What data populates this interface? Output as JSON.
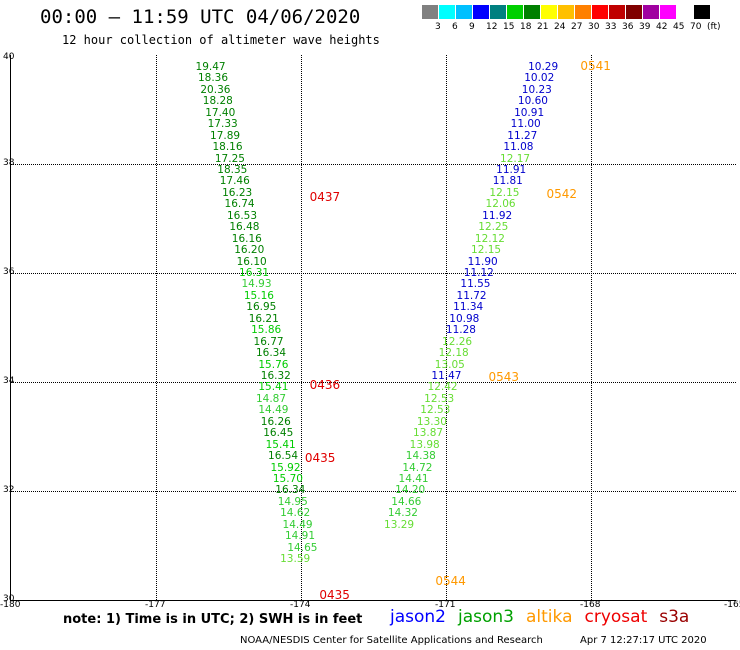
{
  "title": "00:00 – 11:59 UTC 04/06/2020",
  "subtitle": "12 hour collection of altimeter wave heights",
  "colorbar": {
    "colors": [
      "#808080",
      "#00ffff",
      "#00c0ff",
      "#0000ff",
      "#008080",
      "#00d000",
      "#008000",
      "#ffff00",
      "#ffc000",
      "#ff8000",
      "#ff0000",
      "#c00000",
      "#800000",
      "#a000a0",
      "#ff00ff",
      "#ffffff",
      "#000000"
    ],
    "labels": [
      "3",
      "6",
      "9",
      "12",
      "15",
      "18",
      "21",
      "24",
      "27",
      "30",
      "33",
      "36",
      "39",
      "42",
      "45",
      "70",
      "(ft)"
    ]
  },
  "axes": {
    "y_ticks": [
      "40",
      "38",
      "36",
      "34",
      "32",
      "30"
    ],
    "x_ticks": [
      "-180",
      "-177",
      "-174",
      "-171",
      "-168",
      "-165"
    ]
  },
  "map_data": {
    "lat_range": [
      30,
      40
    ],
    "lon_range": [
      -180,
      -165
    ],
    "time_labels": [
      {
        "text": "0437",
        "lon": -173.8,
        "lat": 37.4,
        "color": "#e00000"
      },
      {
        "text": "0436",
        "lon": -173.8,
        "lat": 33.95,
        "color": "#e00000"
      },
      {
        "text": "0435",
        "lon": -173.9,
        "lat": 32.6,
        "color": "#e00000"
      },
      {
        "text": "0435",
        "lon": -173.6,
        "lat": 30.1,
        "color": "#e00000"
      },
      {
        "text": "0541",
        "lon": -168.2,
        "lat": 39.8,
        "color": "#ff9900"
      },
      {
        "text": "0542",
        "lon": -168.9,
        "lat": 37.45,
        "color": "#ff9900"
      },
      {
        "text": "0543",
        "lon": -170.1,
        "lat": 34.1,
        "color": "#ff9900"
      },
      {
        "text": "0544",
        "lon": -171.2,
        "lat": 30.35,
        "color": "#ff9900"
      }
    ],
    "tracks": [
      {
        "satellite": "jason3",
        "points": [
          {
            "v": "19.47",
            "lon": -175.85,
            "lat": 39.78,
            "c": "#008000"
          },
          {
            "v": "18.36",
            "lon": -175.8,
            "lat": 39.57,
            "c": "#008000"
          },
          {
            "v": "20.36",
            "lon": -175.75,
            "lat": 39.36,
            "c": "#008000"
          },
          {
            "v": "18.28",
            "lon": -175.7,
            "lat": 39.15,
            "c": "#008000"
          },
          {
            "v": "17.40",
            "lon": -175.65,
            "lat": 38.94,
            "c": "#008000"
          },
          {
            "v": "17.33",
            "lon": -175.6,
            "lat": 38.73,
            "c": "#008000"
          },
          {
            "v": "17.89",
            "lon": -175.55,
            "lat": 38.52,
            "c": "#008000"
          },
          {
            "v": "18.16",
            "lon": -175.5,
            "lat": 38.31,
            "c": "#008000"
          },
          {
            "v": "17.25",
            "lon": -175.45,
            "lat": 38.1,
            "c": "#008000"
          },
          {
            "v": "18.35",
            "lon": -175.4,
            "lat": 37.89,
            "c": "#008000"
          },
          {
            "v": "17.46",
            "lon": -175.35,
            "lat": 37.68,
            "c": "#008000"
          },
          {
            "v": "16.23",
            "lon": -175.3,
            "lat": 37.47,
            "c": "#008000"
          },
          {
            "v": "16.74",
            "lon": -175.25,
            "lat": 37.26,
            "c": "#008000"
          },
          {
            "v": "16.53",
            "lon": -175.2,
            "lat": 37.05,
            "c": "#008000"
          },
          {
            "v": "16.48",
            "lon": -175.15,
            "lat": 36.84,
            "c": "#008000"
          },
          {
            "v": "16.16",
            "lon": -175.1,
            "lat": 36.63,
            "c": "#008000"
          },
          {
            "v": "16.20",
            "lon": -175.05,
            "lat": 36.42,
            "c": "#008000"
          },
          {
            "v": "16.10",
            "lon": -175.0,
            "lat": 36.21,
            "c": "#008000"
          },
          {
            "v": "16.31",
            "lon": -174.95,
            "lat": 36.0,
            "c": "#00cc00"
          },
          {
            "v": "14.93",
            "lon": -174.9,
            "lat": 35.79,
            "c": "#33cc33"
          },
          {
            "v": "15.16",
            "lon": -174.85,
            "lat": 35.58,
            "c": "#00cc00"
          },
          {
            "v": "16.95",
            "lon": -174.8,
            "lat": 35.37,
            "c": "#008000"
          },
          {
            "v": "16.21",
            "lon": -174.75,
            "lat": 35.16,
            "c": "#008000"
          },
          {
            "v": "15.86",
            "lon": -174.7,
            "lat": 34.95,
            "c": "#00cc00"
          },
          {
            "v": "16.77",
            "lon": -174.65,
            "lat": 34.74,
            "c": "#008000"
          },
          {
            "v": "16.34",
            "lon": -174.6,
            "lat": 34.53,
            "c": "#008000"
          },
          {
            "v": "15.76",
            "lon": -174.55,
            "lat": 34.32,
            "c": "#00cc00"
          },
          {
            "v": "16.32",
            "lon": -174.5,
            "lat": 34.11,
            "c": "#008000"
          },
          {
            "v": "15.41",
            "lon": -174.55,
            "lat": 33.9,
            "c": "#00cc00"
          },
          {
            "v": "14.87",
            "lon": -174.6,
            "lat": 33.69,
            "c": "#33cc33"
          },
          {
            "v": "14.49",
            "lon": -174.55,
            "lat": 33.48,
            "c": "#33cc33"
          },
          {
            "v": "16.26",
            "lon": -174.5,
            "lat": 33.27,
            "c": "#008000"
          },
          {
            "v": "16.45",
            "lon": -174.45,
            "lat": 33.06,
            "c": "#008000"
          },
          {
            "v": "15.41",
            "lon": -174.4,
            "lat": 32.85,
            "c": "#00cc00"
          },
          {
            "v": "16.54",
            "lon": -174.35,
            "lat": 32.64,
            "c": "#008000"
          },
          {
            "v": "15.92",
            "lon": -174.3,
            "lat": 32.43,
            "c": "#00cc00"
          },
          {
            "v": "15.70",
            "lon": -174.25,
            "lat": 32.22,
            "c": "#00cc00"
          },
          {
            "v": "16.34",
            "lon": -174.2,
            "lat": 32.01,
            "c": "#008000"
          },
          {
            "v": "14.95",
            "lon": -174.15,
            "lat": 31.8,
            "c": "#33cc33"
          },
          {
            "v": "14.62",
            "lon": -174.1,
            "lat": 31.59,
            "c": "#33cc33"
          },
          {
            "v": "14.49",
            "lon": -174.05,
            "lat": 31.38,
            "c": "#33cc33"
          },
          {
            "v": "14.91",
            "lon": -174.0,
            "lat": 31.17,
            "c": "#33cc33"
          },
          {
            "v": "14.65",
            "lon": -173.95,
            "lat": 30.96,
            "c": "#33cc33"
          },
          {
            "v": "13.59",
            "lon": -174.1,
            "lat": 30.75,
            "c": "#66dd33"
          }
        ]
      },
      {
        "satellite": "jason2",
        "points": [
          {
            "v": "10.29",
            "lon": -168.97,
            "lat": 39.78,
            "c": "#0000cc"
          },
          {
            "v": "10.02",
            "lon": -169.05,
            "lat": 39.57,
            "c": "#0000cc"
          },
          {
            "v": "10.23",
            "lon": -169.1,
            "lat": 39.36,
            "c": "#0000cc"
          },
          {
            "v": "10.60",
            "lon": -169.18,
            "lat": 39.15,
            "c": "#0000cc"
          },
          {
            "v": "10.91",
            "lon": -169.26,
            "lat": 38.94,
            "c": "#0000cc"
          },
          {
            "v": "11.00",
            "lon": -169.33,
            "lat": 38.73,
            "c": "#0000cc"
          },
          {
            "v": "11.27",
            "lon": -169.4,
            "lat": 38.52,
            "c": "#0000cc"
          },
          {
            "v": "11.08",
            "lon": -169.48,
            "lat": 38.31,
            "c": "#0000cc"
          },
          {
            "v": "12.17",
            "lon": -169.55,
            "lat": 38.1,
            "c": "#66dd33"
          },
          {
            "v": "11.91",
            "lon": -169.63,
            "lat": 37.89,
            "c": "#0000cc"
          },
          {
            "v": "11.81",
            "lon": -169.7,
            "lat": 37.68,
            "c": "#0000cc"
          },
          {
            "v": "12.15",
            "lon": -169.77,
            "lat": 37.47,
            "c": "#66dd33"
          },
          {
            "v": "12.06",
            "lon": -169.85,
            "lat": 37.26,
            "c": "#66dd33"
          },
          {
            "v": "11.92",
            "lon": -169.92,
            "lat": 37.05,
            "c": "#0000cc"
          },
          {
            "v": "12.25",
            "lon": -170.0,
            "lat": 36.84,
            "c": "#66dd33"
          },
          {
            "v": "12.12",
            "lon": -170.07,
            "lat": 36.63,
            "c": "#66dd33"
          },
          {
            "v": "12.15",
            "lon": -170.15,
            "lat": 36.42,
            "c": "#66dd33"
          },
          {
            "v": "11.90",
            "lon": -170.22,
            "lat": 36.21,
            "c": "#0000cc"
          },
          {
            "v": "11.12",
            "lon": -170.3,
            "lat": 36.0,
            "c": "#0000cc"
          },
          {
            "v": "11.55",
            "lon": -170.37,
            "lat": 35.79,
            "c": "#0000cc"
          },
          {
            "v": "11.72",
            "lon": -170.45,
            "lat": 35.58,
            "c": "#0000cc"
          },
          {
            "v": "11.34",
            "lon": -170.52,
            "lat": 35.37,
            "c": "#0000cc"
          },
          {
            "v": "10.98",
            "lon": -170.6,
            "lat": 35.16,
            "c": "#0000cc"
          },
          {
            "v": "11.28",
            "lon": -170.67,
            "lat": 34.95,
            "c": "#0000cc"
          },
          {
            "v": "12.26",
            "lon": -170.75,
            "lat": 34.74,
            "c": "#66dd33"
          },
          {
            "v": "12.18",
            "lon": -170.82,
            "lat": 34.53,
            "c": "#66dd33"
          },
          {
            "v": "13.05",
            "lon": -170.9,
            "lat": 34.32,
            "c": "#66dd33"
          },
          {
            "v": "11.47",
            "lon": -170.97,
            "lat": 34.11,
            "c": "#0000cc"
          },
          {
            "v": "12.42",
            "lon": -171.05,
            "lat": 33.9,
            "c": "#66dd33"
          },
          {
            "v": "12.53",
            "lon": -171.12,
            "lat": 33.69,
            "c": "#66dd33"
          },
          {
            "v": "12.53",
            "lon": -171.2,
            "lat": 33.48,
            "c": "#66dd33"
          },
          {
            "v": "13.30",
            "lon": -171.27,
            "lat": 33.27,
            "c": "#66dd33"
          },
          {
            "v": "13.87",
            "lon": -171.35,
            "lat": 33.06,
            "c": "#66dd33"
          },
          {
            "v": "13.98",
            "lon": -171.42,
            "lat": 32.85,
            "c": "#66dd33"
          },
          {
            "v": "14.38",
            "lon": -171.5,
            "lat": 32.64,
            "c": "#33cc33"
          },
          {
            "v": "14.72",
            "lon": -171.57,
            "lat": 32.43,
            "c": "#33cc33"
          },
          {
            "v": "14.41",
            "lon": -171.65,
            "lat": 32.22,
            "c": "#33cc33"
          },
          {
            "v": "14.20",
            "lon": -171.72,
            "lat": 32.01,
            "c": "#33cc33"
          },
          {
            "v": "14.66",
            "lon": -171.8,
            "lat": 31.8,
            "c": "#33cc33"
          },
          {
            "v": "14.32",
            "lon": -171.87,
            "lat": 31.59,
            "c": "#33cc33"
          },
          {
            "v": "13.29",
            "lon": -171.95,
            "lat": 31.38,
            "c": "#66dd33"
          }
        ]
      }
    ]
  },
  "note": "note: 1) Time is in UTC; 2) SWH is in feet",
  "legend": [
    {
      "name": "jason2",
      "color": "#0000ff"
    },
    {
      "name": "jason3",
      "color": "#00a000"
    },
    {
      "name": "altika",
      "color": "#ff9900"
    },
    {
      "name": "cryosat",
      "color": "#ee0000"
    },
    {
      "name": "s3a",
      "color": "#990000"
    }
  ],
  "credit": "NOAA/NESDIS Center for Satellite Applications and Research",
  "timestamp": "Apr  7 12:27:17 UTC 2020"
}
